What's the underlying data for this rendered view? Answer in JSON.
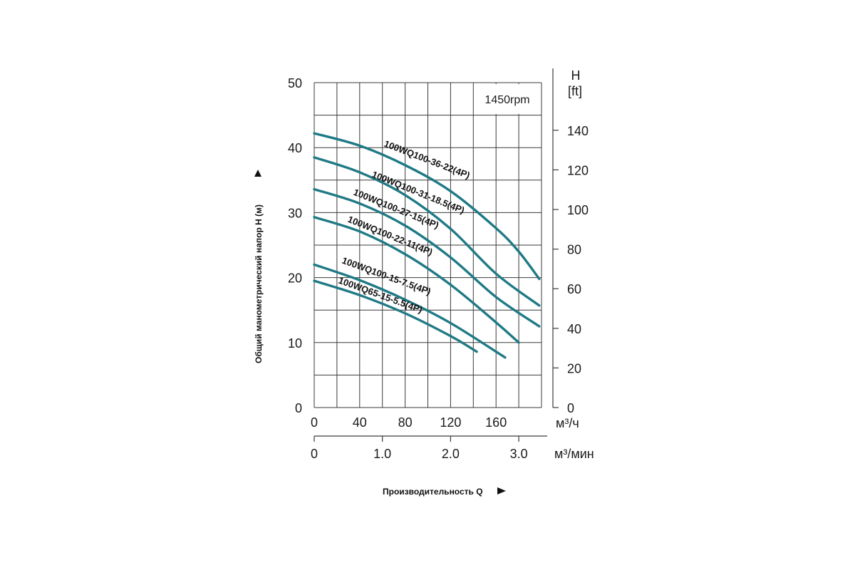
{
  "chart_data": {
    "type": "line",
    "annotation": "1450rpm",
    "y_left": {
      "label": "Общий манометрический напор H (м)",
      "range": [
        0,
        50
      ],
      "ticks": [
        "0",
        "10",
        "20",
        "30",
        "40",
        "50"
      ]
    },
    "y_right": {
      "label_top": "H",
      "label_unit": "[ft]",
      "range": [
        0,
        164
      ],
      "ticks": [
        "0",
        "20",
        "40",
        "60",
        "80",
        "100",
        "120",
        "140"
      ]
    },
    "x_primary": {
      "unit": "м³/ч",
      "range": [
        0,
        200
      ],
      "ticks": [
        "0",
        "40",
        "80",
        "120",
        "160"
      ]
    },
    "x_secondary": {
      "unit": "м³/мин",
      "range": [
        0,
        3.33
      ],
      "ticks": [
        "0",
        "1.0",
        "2.0",
        "3.0"
      ]
    },
    "xlabel": "Производительность Q",
    "grid": true,
    "series": [
      {
        "name": "100WQ100-36-22(4P)",
        "x": [
          0,
          40,
          80,
          120,
          160,
          180,
          198
        ],
        "y": [
          42.2,
          40.3,
          37.3,
          33.3,
          27.6,
          24.0,
          19.8
        ]
      },
      {
        "name": "100WQ100-31-18.5(4P)",
        "x": [
          0,
          40,
          80,
          120,
          160,
          198
        ],
        "y": [
          38.5,
          36.2,
          32.7,
          27.5,
          20.6,
          15.7
        ]
      },
      {
        "name": "100WQ100-27-15(4P)",
        "x": [
          0,
          40,
          80,
          120,
          160,
          198
        ],
        "y": [
          33.6,
          31.4,
          28.0,
          23.1,
          17.0,
          12.5
        ]
      },
      {
        "name": "100WQ100-22-11(4P)",
        "x": [
          0,
          40,
          80,
          120,
          160,
          180
        ],
        "y": [
          29.3,
          27.1,
          23.6,
          18.9,
          13.1,
          10.0
        ]
      },
      {
        "name": "100WQ100-15-7.5(4P)",
        "x": [
          0,
          40,
          80,
          120,
          168
        ],
        "y": [
          22.0,
          19.6,
          16.6,
          13.0,
          7.7
        ]
      },
      {
        "name": "100WQ65-15-5.5(4P)",
        "x": [
          0,
          40,
          80,
          120,
          143
        ],
        "y": [
          19.5,
          17.3,
          14.5,
          11.0,
          8.6
        ]
      }
    ]
  }
}
